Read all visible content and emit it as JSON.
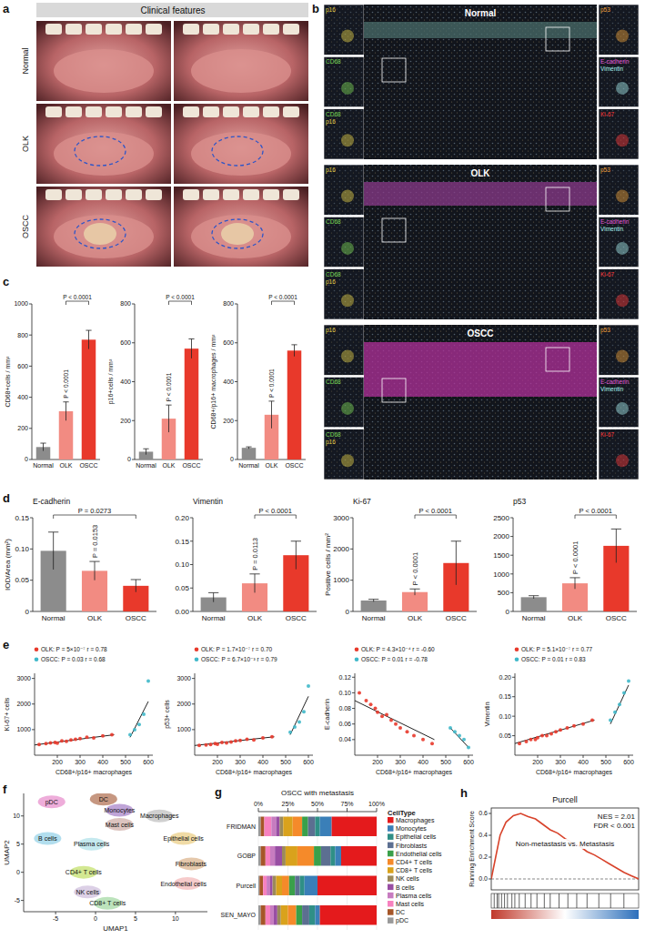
{
  "figure": {
    "a": {
      "panel_label": "a",
      "title": "Clinical features",
      "rows": [
        "Normal",
        "OLK",
        "OSCC"
      ]
    },
    "b": {
      "panel_label": "b",
      "rows": [
        "Normal",
        "OLK",
        "OSCC"
      ],
      "left_insets": [
        {
          "labels": [
            "p16"
          ],
          "colors": [
            "#e6d24a"
          ]
        },
        {
          "labels": [
            "CD68"
          ],
          "colors": [
            "#7ed957"
          ]
        },
        {
          "labels": [
            "CD68",
            "p16"
          ],
          "colors": [
            "#7ed957",
            "#e6d24a"
          ]
        }
      ],
      "right_insets": [
        {
          "labels": [
            "p53"
          ],
          "colors": [
            "#f2a33a"
          ]
        },
        {
          "labels": [
            "E-cadherin",
            "Vimentin"
          ],
          "colors": [
            "#e05ad6",
            "#a8f0f0"
          ]
        },
        {
          "labels": [
            "Ki-67"
          ],
          "colors": [
            "#ff3b3b"
          ]
        }
      ]
    }
  },
  "chart_data": [
    {
      "type": "bar",
      "panel_label": "c",
      "y_label": "CD68+cells / mm²",
      "categories": [
        "Normal",
        "OLK",
        "OSCC"
      ],
      "values": [
        80,
        310,
        770
      ],
      "errors": [
        25,
        60,
        60
      ],
      "colors": [
        "#8c8c8c",
        "#f28b82",
        "#e8392b"
      ],
      "ylim": [
        0,
        1000
      ],
      "yticks": [
        0,
        200,
        400,
        600,
        800,
        1000
      ],
      "annotations": [
        {
          "text": "P < 0.0001",
          "groups": [
            "OLK",
            "OSCC"
          ]
        },
        {
          "text": "P < 0.0001",
          "groups": [
            "Normal",
            "OLK"
          ]
        }
      ]
    },
    {
      "type": "bar",
      "y_label": "p16+cells / mm²",
      "categories": [
        "Normal",
        "OLK",
        "OSCC"
      ],
      "values": [
        40,
        210,
        570
      ],
      "errors": [
        15,
        70,
        50
      ],
      "colors": [
        "#8c8c8c",
        "#f28b82",
        "#e8392b"
      ],
      "ylim": [
        0,
        800
      ],
      "yticks": [
        0,
        200,
        400,
        600,
        800
      ],
      "annotations": [
        {
          "text": "P < 0.0001",
          "groups": [
            "OLK",
            "OSCC"
          ]
        },
        {
          "text": "P < 0.0001",
          "groups": [
            "Normal",
            "OLK"
          ]
        }
      ]
    },
    {
      "type": "bar",
      "y_label": "CD68+/p16+ macrophages / mm²",
      "categories": [
        "Normal",
        "OLK",
        "OSCC"
      ],
      "values": [
        60,
        230,
        560
      ],
      "errors": [
        5,
        70,
        30
      ],
      "colors": [
        "#8c8c8c",
        "#f28b82",
        "#e8392b"
      ],
      "ylim": [
        0,
        800
      ],
      "yticks": [
        0,
        200,
        400,
        600,
        800
      ],
      "annotations": [
        {
          "text": "P < 0.0001",
          "groups": [
            "OLK",
            "OSCC"
          ]
        },
        {
          "text": "P < 0.0001",
          "groups": [
            "Normal",
            "OLK"
          ]
        }
      ]
    },
    {
      "type": "bar",
      "panel_label": "d",
      "title": "E-cadherin",
      "y_label": "IOD/Area (mm²)",
      "categories": [
        "Normal",
        "OLK",
        "OSCC"
      ],
      "values": [
        0.097,
        0.065,
        0.041
      ],
      "errors": [
        0.03,
        0.015,
        0.01
      ],
      "colors": [
        "#8c8c8c",
        "#f28b82",
        "#e8392b"
      ],
      "ylim": [
        0,
        0.15
      ],
      "yticks": [
        0,
        0.05,
        {
          "value": 0.1,
          "label": "0.10"
        },
        0.15
      ],
      "annotations": [
        {
          "text": "P = 0.0273",
          "groups": [
            "Normal",
            "OSCC"
          ]
        },
        {
          "text": "P = 0.0153",
          "groups": [
            "Normal",
            "OLK"
          ]
        }
      ]
    },
    {
      "type": "bar",
      "title": "Vimentin",
      "categories": [
        "Normal",
        "OLK",
        "OSCC"
      ],
      "values": [
        0.03,
        0.06,
        0.12
      ],
      "errors": [
        0.01,
        0.02,
        0.03
      ],
      "colors": [
        "#8c8c8c",
        "#f28b82",
        "#e8392b"
      ],
      "ylim": [
        0,
        0.2
      ],
      "yticks": [
        {
          "value": 0,
          "label": "0.00"
        },
        0.05,
        {
          "value": 0.1,
          "label": "0.10"
        },
        0.15,
        {
          "value": 0.2,
          "label": "0.20"
        }
      ],
      "annotations": [
        {
          "text": "P < 0.0001",
          "groups": [
            "OLK",
            "OSCC"
          ]
        },
        {
          "text": "P = 0.0113",
          "groups": [
            "Normal",
            "OLK"
          ]
        }
      ]
    },
    {
      "type": "bar",
      "title": "Ki-67",
      "y_label": "Positive cells / mm²",
      "categories": [
        "Normal",
        "OLK",
        "OSCC"
      ],
      "values": [
        350,
        620,
        1550
      ],
      "errors": [
        40,
        100,
        700
      ],
      "colors": [
        "#8c8c8c",
        "#f28b82",
        "#e8392b"
      ],
      "ylim": [
        0,
        3000
      ],
      "yticks": [
        0,
        1000,
        2000,
        3000
      ],
      "annotations": [
        {
          "text": "P < 0.0001",
          "groups": [
            "OLK",
            "OSCC"
          ]
        },
        {
          "text": "P < 0.0001",
          "groups": [
            "Normal",
            "OLK"
          ]
        }
      ]
    },
    {
      "type": "bar",
      "title": "p53",
      "categories": [
        "Normal",
        "OLK",
        "OSCC"
      ],
      "values": [
        380,
        750,
        1750
      ],
      "errors": [
        40,
        150,
        450
      ],
      "colors": [
        "#8c8c8c",
        "#f28b82",
        "#e8392b"
      ],
      "ylim": [
        0,
        2500
      ],
      "yticks": [
        0,
        500,
        1000,
        1500,
        2000,
        2500
      ],
      "annotations": [
        {
          "text": "P < 0.0001",
          "groups": [
            "OLK",
            "OSCC"
          ]
        },
        {
          "text": "P < 0.0001",
          "groups": [
            "Normal",
            "OLK"
          ]
        }
      ]
    },
    {
      "type": "scatter",
      "panel_label": "e",
      "x_label": "CD68+/p16+ macrophages",
      "y_label": "Ki-67+ cells",
      "legend": "top",
      "xlim": [
        100,
        620
      ],
      "xticks": [
        200,
        300,
        400,
        500,
        600
      ],
      "ylim": [
        0,
        3200
      ],
      "yticks": [
        1000,
        2000,
        3000
      ],
      "series": [
        {
          "name": "OLK: P = 5×10⁻⁷ r = 0.78",
          "color": "#e8392b",
          "x": [
            120,
            150,
            170,
            190,
            200,
            220,
            240,
            260,
            280,
            300,
            330,
            360,
            400,
            440
          ],
          "values": [
            420,
            450,
            480,
            500,
            470,
            560,
            540,
            600,
            620,
            650,
            700,
            680,
            760,
            800
          ],
          "fit_x": [
            100,
            450
          ],
          "fit_values": [
            400,
            800
          ]
        },
        {
          "name": "OSCC: P = 0.03 r = 0.68",
          "color": "#3fb8c9",
          "x": [
            520,
            540,
            560,
            580,
            600
          ],
          "values": [
            800,
            1000,
            1200,
            1600,
            2900
          ],
          "fit_x": [
            520,
            600
          ],
          "fit_values": [
            700,
            2100
          ]
        }
      ]
    },
    {
      "type": "scatter",
      "x_label": "CD68+/p16+ macrophages",
      "y_label": "p53+ cells",
      "legend": "top",
      "xlim": [
        100,
        620
      ],
      "xticks": [
        200,
        300,
        400,
        500,
        600
      ],
      "ylim": [
        0,
        3200
      ],
      "yticks": [
        1000,
        2000,
        3000
      ],
      "series": [
        {
          "name": "OLK: P = 1.7×10⁻⁷ r = 0.70",
          "color": "#e8392b",
          "x": [
            120,
            150,
            170,
            190,
            200,
            220,
            240,
            260,
            280,
            300,
            330,
            360,
            400,
            440
          ],
          "values": [
            380,
            400,
            420,
            450,
            430,
            500,
            480,
            520,
            560,
            580,
            620,
            600,
            680,
            720
          ],
          "fit_x": [
            100,
            450
          ],
          "fit_values": [
            380,
            720
          ]
        },
        {
          "name": "OSCC: P = 6.7×10⁻³ r = 0.79",
          "color": "#3fb8c9",
          "x": [
            520,
            540,
            560,
            580,
            600
          ],
          "values": [
            900,
            1100,
            1300,
            1700,
            2700
          ],
          "fit_x": [
            520,
            600
          ],
          "fit_values": [
            800,
            2300
          ]
        }
      ]
    },
    {
      "type": "scatter",
      "x_label": "CD68+/p16+ macrophages",
      "y_label": "E-cadherin",
      "legend": "top",
      "xlim": [
        100,
        620
      ],
      "xticks": [
        200,
        300,
        400,
        500,
        600
      ],
      "ylim": [
        0.02,
        0.125
      ],
      "yticks": [
        0.04,
        0.06,
        0.08,
        {
          "value": 0.1,
          "label": "0.10"
        },
        0.12
      ],
      "series": [
        {
          "name": "OLK: P = 4.3×10⁻⁴ r = -0.60",
          "color": "#e8392b",
          "x": [
            120,
            150,
            170,
            190,
            200,
            220,
            240,
            260,
            280,
            300,
            330,
            360,
            400,
            440
          ],
          "values": [
            0.1,
            0.09,
            0.085,
            0.08,
            0.075,
            0.07,
            0.072,
            0.065,
            0.06,
            0.055,
            0.05,
            0.045,
            0.04,
            0.035
          ],
          "fit_x": [
            100,
            450
          ],
          "fit_values": [
            0.09,
            0.04
          ]
        },
        {
          "name": "OSCC: P = 0.01 r = -0.78",
          "color": "#3fb8c9",
          "x": [
            520,
            540,
            560,
            580,
            600
          ],
          "values": [
            0.055,
            0.05,
            0.045,
            0.04,
            0.03
          ],
          "fit_x": [
            520,
            600
          ],
          "fit_values": [
            0.055,
            0.03
          ]
        }
      ]
    },
    {
      "type": "scatter",
      "x_label": "CD68+/p16+ macrophages",
      "y_label": "Vimentin",
      "legend": "top",
      "xlim": [
        100,
        620
      ],
      "xticks": [
        200,
        300,
        400,
        500,
        600
      ],
      "ylim": [
        0,
        0.21
      ],
      "yticks": [
        0.05,
        {
          "value": 0.1,
          "label": "0.10"
        },
        0.15,
        {
          "value": 0.2,
          "label": "0.20"
        }
      ],
      "series": [
        {
          "name": "OLK: P = 5.1×10⁻⁷ r = 0.77",
          "color": "#e8392b",
          "x": [
            120,
            150,
            170,
            190,
            200,
            220,
            240,
            260,
            280,
            300,
            330,
            360,
            400,
            440
          ],
          "values": [
            0.03,
            0.035,
            0.04,
            0.04,
            0.045,
            0.05,
            0.05,
            0.055,
            0.06,
            0.065,
            0.07,
            0.075,
            0.08,
            0.09
          ],
          "fit_x": [
            100,
            450
          ],
          "fit_values": [
            0.03,
            0.09
          ]
        },
        {
          "name": "OSCC: P = 0.01 r = 0.83",
          "color": "#3fb8c9",
          "x": [
            520,
            540,
            560,
            580,
            600
          ],
          "values": [
            0.09,
            0.11,
            0.13,
            0.16,
            0.19
          ],
          "fit_x": [
            520,
            600
          ],
          "fit_values": [
            0.08,
            0.18
          ]
        }
      ]
    },
    {
      "type": "scatter",
      "marker": "cluster",
      "panel_label": "f",
      "x_label": "UMAP1",
      "y_label": "UMAP2",
      "xlim": [
        -9,
        14
      ],
      "xticks": [
        -5,
        0,
        5,
        10
      ],
      "ylim": [
        -7,
        14
      ],
      "yticks": [
        -5,
        0,
        5,
        10
      ],
      "categories": [
        "pDC",
        "DC",
        "Monocytes",
        "Macrophages",
        "Mast cells",
        "B cells",
        "Plasma cells",
        "Epithelial cells",
        "Fibroblasts",
        "Endothelial cells",
        "CD4+ T cells",
        "NK cells",
        "CD8+ T cells"
      ],
      "x": [
        -5.5,
        1,
        3,
        8,
        3,
        -6,
        -0.5,
        11,
        12,
        11.5,
        -1.5,
        -1,
        1.5
      ],
      "values": [
        12.5,
        13,
        11,
        10,
        8.5,
        6,
        5,
        6,
        1.5,
        -2,
        0,
        -3.5,
        -5.5
      ],
      "colors": [
        "#e377c2",
        "#a0522d",
        "#9467bd",
        "#b0b0b0",
        "#c49c94",
        "#7ec8e3",
        "#9edae5",
        "#e6c36a",
        "#d4a373",
        "#f0a8a8",
        "#b5d94a",
        "#c5b0d5",
        "#8fd18f"
      ]
    },
    {
      "type": "bar",
      "orientation": "horizontal",
      "stacked": true,
      "panel_label": "g",
      "title": "OSCC with metastasis",
      "legend": "right",
      "legend_title": "CellType",
      "categories": [
        "FRIDMAN",
        "GOBP",
        "Purcell",
        "SEN_MAYO"
      ],
      "xlim": [
        0,
        100
      ],
      "xticks": [
        {
          "value": 0,
          "label": "0%"
        },
        {
          "value": 25,
          "label": "25%"
        },
        {
          "value": 50,
          "label": "50%"
        },
        {
          "value": 75,
          "label": "75%"
        },
        {
          "value": 100,
          "label": "100%"
        }
      ],
      "series": [
        {
          "name": "Macrophages",
          "color": "#e41a1c",
          "values": [
            38,
            30,
            50,
            48
          ]
        },
        {
          "name": "Monocytes",
          "color": "#3a7fb8",
          "values": [
            10,
            5,
            11,
            4
          ]
        },
        {
          "name": "Epithelial cells",
          "color": "#2f8f86",
          "values": [
            4,
            4,
            4,
            5
          ]
        },
        {
          "name": "Fibroblasts",
          "color": "#5c6f91",
          "values": [
            6,
            8,
            4,
            6
          ]
        },
        {
          "name": "Endothelial cells",
          "color": "#3aa04a",
          "values": [
            5,
            6,
            5,
            5
          ]
        },
        {
          "name": "CD4+ T cells",
          "color": "#f58a2a",
          "values": [
            8,
            14,
            6,
            7
          ]
        },
        {
          "name": "CD8+ T cells",
          "color": "#d9a21c",
          "values": [
            8,
            10,
            5,
            6
          ]
        },
        {
          "name": "NK cells",
          "color": "#9b8a5a",
          "values": [
            3,
            3,
            3,
            3
          ]
        },
        {
          "name": "B cells",
          "color": "#984ea3",
          "values": [
            3,
            6,
            2,
            3
          ]
        },
        {
          "name": "Plasma cells",
          "color": "#c77cc0",
          "values": [
            4,
            4,
            3,
            3
          ]
        },
        {
          "name": "Mast cells",
          "color": "#f781bf",
          "values": [
            6,
            4,
            3,
            4
          ]
        },
        {
          "name": "DC",
          "color": "#a65628",
          "values": [
            3,
            4,
            3,
            4
          ]
        },
        {
          "name": "pDC",
          "color": "#999999",
          "values": [
            2,
            2,
            1,
            2
          ]
        }
      ]
    },
    {
      "type": "line",
      "panel_label": "h",
      "title": "Purcell",
      "y_label": "Running Enrichment Score",
      "tick_labels": "y",
      "color": "#d8432b",
      "x": [
        0,
        3,
        6,
        10,
        15,
        20,
        25,
        30,
        35,
        40,
        45,
        50,
        55,
        60,
        65,
        70,
        75,
        80,
        85,
        90,
        95,
        100
      ],
      "values": [
        0,
        0.2,
        0.4,
        0.52,
        0.58,
        0.6,
        0.57,
        0.55,
        0.5,
        0.45,
        0.42,
        0.37,
        0.33,
        0.3,
        0.25,
        0.22,
        0.18,
        0.14,
        0.1,
        0.06,
        0.03,
        0
      ],
      "hits": [
        2,
        4,
        5,
        7,
        9,
        11,
        14,
        16,
        19,
        23,
        27,
        31,
        36,
        40,
        46,
        52,
        58,
        65,
        73,
        81,
        90
      ],
      "xlim": [
        0,
        100
      ],
      "ylim": [
        -0.1,
        0.65
      ],
      "yticks": [
        {
          "value": 0,
          "label": "0.0"
        },
        0.2,
        0.4,
        0.6
      ],
      "annotations": [
        "NES = 2.01",
        "FDR < 0.001",
        "Non-metastasis vs. Metastasis"
      ]
    }
  ]
}
